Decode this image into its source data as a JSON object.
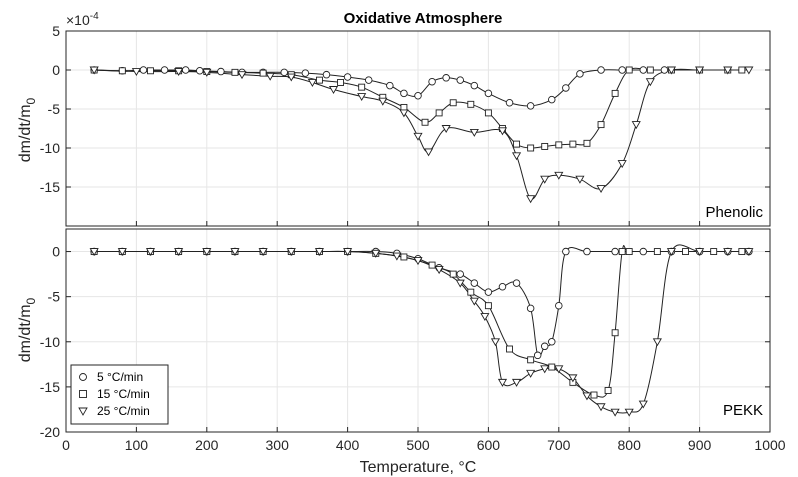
{
  "chart_data": [
    {
      "type": "line",
      "title": "Oxidative Atmosphere",
      "panel_label": "Phenolic",
      "ylabel": "dm/dt/m",
      "ylabel_sub": "0",
      "exponent_label": "×10",
      "exponent_power": "-4",
      "xlim": [
        0,
        1000
      ],
      "ylim": [
        -20,
        5
      ],
      "y_ticks": [
        5,
        0,
        -5,
        -10,
        -15
      ],
      "grid": true,
      "series": [
        {
          "name": "5 °C/min",
          "marker": "circle",
          "x": [
            40,
            80,
            110,
            140,
            170,
            190,
            220,
            250,
            280,
            310,
            340,
            370,
            400,
            430,
            460,
            480,
            500,
            520,
            540,
            560,
            580,
            600,
            630,
            660,
            690,
            710,
            730,
            760,
            790,
            820,
            850
          ],
          "y": [
            0,
            -0.1,
            0,
            0,
            0,
            -0.1,
            -0.2,
            -0.3,
            -0.3,
            -0.3,
            -0.4,
            -0.6,
            -0.9,
            -1.3,
            -2.0,
            -3.0,
            -3.3,
            -1.5,
            -1.0,
            -1.3,
            -2.0,
            -3.0,
            -4.2,
            -4.6,
            -3.8,
            -2.3,
            -0.5,
            0,
            0,
            0,
            0
          ]
        },
        {
          "name": "15 °C/min",
          "marker": "square",
          "x": [
            40,
            80,
            120,
            160,
            200,
            240,
            280,
            320,
            360,
            390,
            420,
            450,
            480,
            510,
            530,
            550,
            575,
            600,
            620,
            640,
            660,
            680,
            700,
            720,
            740,
            760,
            780,
            800,
            830,
            860,
            900,
            940,
            960
          ],
          "y": [
            0,
            -0.1,
            -0.1,
            -0.1,
            -0.2,
            -0.3,
            -0.4,
            -0.6,
            -1.3,
            -1.6,
            -2.2,
            -3.5,
            -4.8,
            -6.7,
            -5.5,
            -4.2,
            -4.4,
            -5.5,
            -7.5,
            -9.5,
            -10.0,
            -9.8,
            -9.6,
            -9.5,
            -9.4,
            -7.0,
            -3.0,
            0,
            0,
            0,
            0,
            0,
            0
          ]
        },
        {
          "name": "25 °C/min",
          "marker": "triangle",
          "x": [
            40,
            100,
            160,
            200,
            250,
            290,
            320,
            350,
            380,
            420,
            450,
            480,
            500,
            515,
            540,
            580,
            620,
            640,
            660,
            680,
            700,
            730,
            760,
            790,
            810,
            830,
            860,
            900,
            940,
            970
          ],
          "y": [
            0,
            -0.2,
            -0.2,
            -0.3,
            -0.6,
            -0.8,
            -0.9,
            -1.6,
            -2.5,
            -3.4,
            -4.0,
            -5.5,
            -8.5,
            -10.5,
            -7.5,
            -8.0,
            -7.8,
            -11.0,
            -16.5,
            -14.0,
            -13.5,
            -14.0,
            -15.2,
            -12.0,
            -7.0,
            -1.5,
            0,
            0,
            0,
            0
          ]
        }
      ]
    },
    {
      "type": "line",
      "panel_label": "PEKK",
      "ylabel": "dm/dt/m",
      "ylabel_sub": "0",
      "xlabel": "Temperature, °C",
      "xlim": [
        0,
        1000
      ],
      "ylim": [
        -20,
        2.5
      ],
      "x_ticks": [
        0,
        100,
        200,
        300,
        400,
        500,
        600,
        700,
        800,
        900,
        1000
      ],
      "y_ticks": [
        0,
        -5,
        -10,
        -15,
        -20
      ],
      "grid": true,
      "legend_position": "bottom-left",
      "series": [
        {
          "name": "5 °C/min",
          "marker": "circle",
          "x": [
            40,
            80,
            120,
            160,
            200,
            240,
            280,
            320,
            360,
            400,
            440,
            470,
            500,
            530,
            560,
            580,
            600,
            620,
            640,
            660,
            670,
            680,
            690,
            700,
            710,
            740,
            780,
            820,
            860,
            900,
            940,
            970
          ],
          "y": [
            0,
            0,
            0,
            0,
            0,
            0,
            0,
            0,
            0,
            0,
            0,
            -0.2,
            -0.8,
            -1.8,
            -2.5,
            -3.5,
            -4.5,
            -3.9,
            -3.5,
            -6.3,
            -11.5,
            -10.5,
            -10.0,
            -6.0,
            0,
            0,
            0,
            0,
            0,
            0,
            0,
            0
          ]
        },
        {
          "name": "15 °C/min",
          "marker": "square",
          "x": [
            40,
            80,
            120,
            160,
            200,
            240,
            280,
            320,
            360,
            400,
            440,
            480,
            520,
            550,
            575,
            600,
            630,
            660,
            690,
            720,
            750,
            770,
            780,
            790,
            800,
            840,
            880,
            920,
            960
          ],
          "y": [
            0,
            0,
            0,
            0,
            0,
            0,
            0,
            0,
            0,
            0,
            -0.2,
            -0.6,
            -1.5,
            -2.5,
            -4.5,
            -6.0,
            -10.8,
            -12.0,
            -12.8,
            -14.5,
            -15.9,
            -15.4,
            -9.0,
            0,
            0,
            0,
            0,
            0,
            0
          ]
        },
        {
          "name": "25 °C/min",
          "marker": "triangle",
          "x": [
            40,
            80,
            120,
            160,
            200,
            240,
            280,
            320,
            360,
            400,
            440,
            470,
            500,
            530,
            560,
            580,
            595,
            610,
            620,
            640,
            660,
            680,
            700,
            720,
            740,
            760,
            780,
            800,
            820,
            840,
            860,
            900,
            940,
            970
          ],
          "y": [
            0,
            0,
            0,
            0,
            0,
            0,
            0,
            0,
            0,
            0,
            -0.2,
            -0.5,
            -1.0,
            -2.0,
            -3.5,
            -5.5,
            -7.2,
            -10.0,
            -14.5,
            -14.5,
            -13.5,
            -13.0,
            -13.0,
            -14.0,
            -16.0,
            -17.2,
            -17.8,
            -17.8,
            -16.9,
            -10.0,
            0,
            0,
            0,
            0
          ]
        }
      ]
    }
  ]
}
